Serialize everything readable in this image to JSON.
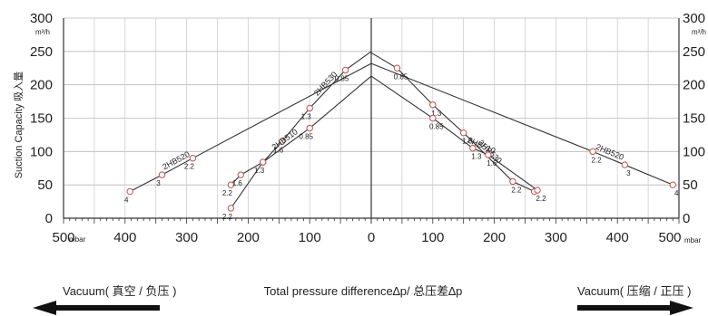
{
  "chart_data": {
    "type": "line",
    "title": "",
    "xlabel": "Total pressure difference∆p/ 总压差∆p",
    "ylabel": "Suction Capacity 吸入量",
    "y_unit": "m³/h",
    "x_unit_left": "mbar",
    "x_unit_right": "mbar",
    "xlim_vacuum": [
      500,
      0
    ],
    "xlim_pressure": [
      0,
      500
    ],
    "ylim": [
      0,
      300
    ],
    "x_ticks_vacuum": [
      "500",
      "400",
      "300",
      "200",
      "100",
      "0"
    ],
    "x_ticks_pressure": [
      "100",
      "200",
      "300",
      "400",
      "500"
    ],
    "y_ticks": [
      "300",
      "250",
      "200",
      "150",
      "100",
      "50",
      "0"
    ],
    "grid": true,
    "legend": "none",
    "vacuum_label": "Vacuum( 真空 / 负压 )",
    "pressure_label": "Vacuum( 压缩 / 正压 )",
    "series": [
      {
        "name": "2HB520",
        "side": "vacuum",
        "points": [
          {
            "x": 392,
            "y": 40,
            "label": "4"
          },
          {
            "x": 340,
            "y": 65,
            "label": "3"
          },
          {
            "x": 290,
            "y": 90,
            "label": "2.2"
          },
          {
            "x": 0,
            "y": 232,
            "label": ""
          }
        ]
      },
      {
        "name": "2HB530",
        "side": "vacuum",
        "points": [
          {
            "x": 228,
            "y": 15,
            "label": "2.2"
          },
          {
            "x": 176,
            "y": 84,
            "label": "1.3"
          },
          {
            "x": 145,
            "y": 115,
            "label": "1.6"
          },
          {
            "x": 100,
            "y": 165,
            "label": "1.3"
          },
          {
            "x": 42,
            "y": 222,
            "label": "0.85"
          },
          {
            "x": 0,
            "y": 250,
            "label": ""
          }
        ]
      },
      {
        "name": "2HB510",
        "side": "vacuum",
        "points": [
          {
            "x": 228,
            "y": 50,
            "label": "2.2"
          },
          {
            "x": 212,
            "y": 65,
            "label": "1.6"
          },
          {
            "x": 176,
            "y": 84,
            "label": ""
          },
          {
            "x": 100,
            "y": 135,
            "label": "0.85"
          },
          {
            "x": 0,
            "y": 213,
            "label": ""
          }
        ]
      },
      {
        "name": "2HB520",
        "side": "pressure",
        "points": [
          {
            "x": 0,
            "y": 232,
            "label": ""
          },
          {
            "x": 360,
            "y": 100,
            "label": "2.2"
          },
          {
            "x": 412,
            "y": 80,
            "label": "3"
          },
          {
            "x": 490,
            "y": 50,
            "label": "4"
          }
        ]
      },
      {
        "name": "2HB530",
        "side": "pressure",
        "points": [
          {
            "x": 0,
            "y": 248,
            "label": ""
          },
          {
            "x": 42,
            "y": 225,
            "label": "0.85"
          },
          {
            "x": 100,
            "y": 170,
            "label": "1.3"
          },
          {
            "x": 150,
            "y": 128,
            "label": "1.6"
          },
          {
            "x": 230,
            "y": 55,
            "label": "2.2"
          },
          {
            "x": 265,
            "y": 40,
            "label": ""
          }
        ]
      },
      {
        "name": "2HB510",
        "side": "pressure",
        "points": [
          {
            "x": 0,
            "y": 213,
            "label": ""
          },
          {
            "x": 100,
            "y": 150,
            "label": "0.85"
          },
          {
            "x": 165,
            "y": 105,
            "label": "1.3"
          },
          {
            "x": 190,
            "y": 95,
            "label": "1.6"
          },
          {
            "x": 270,
            "y": 42,
            "label": "2.2"
          }
        ]
      }
    ]
  }
}
